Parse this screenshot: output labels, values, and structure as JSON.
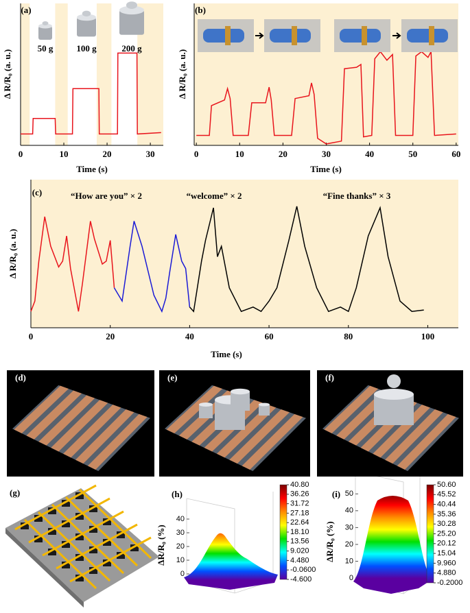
{
  "chart_data": [
    {
      "type": "line",
      "label": "(a)",
      "xlabel": "Time (s)",
      "ylabel": "Δ R/R₀ (a. u.)",
      "background": "#fdf0d2",
      "span_color": "#ffffff",
      "color": "#e8141c",
      "highlight_spans": [
        [
          2.1,
          8
        ],
        [
          10.9,
          17.6
        ],
        [
          21,
          27
        ]
      ],
      "annotations": [
        "50 g",
        "100 g",
        "200 g"
      ],
      "xlim": [
        0,
        33
      ],
      "ylim": [
        0,
        1
      ],
      "xticks": [
        0,
        10,
        20,
        30
      ],
      "x": [
        0,
        2.8,
        2.9,
        8.0,
        8.1,
        12.0,
        12.1,
        18.1,
        18.2,
        22.4,
        22.5,
        26.9,
        27.0,
        32.5
      ],
      "values": [
        0.08,
        0.08,
        0.19,
        0.19,
        0.08,
        0.08,
        0.4,
        0.4,
        0.08,
        0.08,
        0.65,
        0.65,
        0.08,
        0.09
      ]
    },
    {
      "type": "line",
      "label": "(b)",
      "xlabel": "Time (s)",
      "ylabel": "Δ R/R₀ (a. u.)",
      "background": "#fdf0d2",
      "color": "#e8141c",
      "xlim": [
        -0.5,
        60.5
      ],
      "ylim": [
        0,
        1
      ],
      "xticks": [
        0,
        10,
        20,
        30,
        40,
        50,
        60
      ],
      "x": [
        0,
        3,
        3.5,
        6.5,
        7.2,
        7.8,
        8.5,
        12,
        12.8,
        16,
        16.8,
        17.3,
        18,
        22,
        22.8,
        26,
        26.6,
        27.2,
        28,
        30,
        33.5,
        34.2,
        37,
        38,
        38.6,
        40.5,
        41.2,
        42.5,
        44,
        45.3,
        46,
        50,
        50.7,
        52,
        53.5,
        54.2,
        55,
        60
      ],
      "values": [
        0.07,
        0.07,
        0.28,
        0.32,
        0.4,
        0.33,
        0.07,
        0.07,
        0.3,
        0.3,
        0.41,
        0.32,
        0.07,
        0.07,
        0.33,
        0.35,
        0.44,
        0.36,
        0.05,
        0.01,
        0.03,
        0.54,
        0.55,
        0.57,
        0.06,
        0.07,
        0.61,
        0.66,
        0.6,
        0.64,
        0.07,
        0.07,
        0.63,
        0.66,
        0.62,
        0.66,
        0.07,
        0.08
      ]
    },
    {
      "type": "line",
      "label": "(c)",
      "xlabel": "Time (s)",
      "ylabel": "Δ R/R₀ (a. u.)",
      "background": "#fdf0d2",
      "annotations": [
        "“How are you” × 2",
        "“welcome” × 2",
        "“Fine thanks” × 3"
      ],
      "xlim": [
        0,
        107.7
      ],
      "ylim": [
        0,
        1
      ],
      "xticks": [
        0,
        20,
        40,
        60,
        80,
        100
      ],
      "series": [
        {
          "color": "#e8141c",
          "x": [
            0,
            1,
            2,
            3.5,
            5,
            7,
            8,
            9,
            10,
            12,
            13,
            15,
            16,
            18,
            19,
            20,
            21
          ],
          "values": [
            0.11,
            0.18,
            0.45,
            0.75,
            0.55,
            0.41,
            0.45,
            0.62,
            0.4,
            0.11,
            0.3,
            0.72,
            0.6,
            0.43,
            0.45,
            0.59,
            0.27
          ]
        },
        {
          "color": "#1a1ad6",
          "x": [
            21,
            23,
            25,
            26,
            28,
            31,
            33,
            34,
            35,
            36.5,
            38,
            39,
            40
          ],
          "values": [
            0.27,
            0.18,
            0.55,
            0.72,
            0.55,
            0.22,
            0.11,
            0.2,
            0.38,
            0.63,
            0.45,
            0.4,
            0.14
          ]
        },
        {
          "color": "#000000",
          "x": [
            40,
            41,
            43,
            44,
            46,
            47,
            48,
            50,
            53,
            56,
            58,
            60,
            62,
            65,
            67,
            69,
            72,
            75,
            78,
            80,
            82,
            85,
            88,
            90,
            93,
            96,
            99
          ],
          "values": [
            0.14,
            0.11,
            0.45,
            0.59,
            0.81,
            0.48,
            0.55,
            0.27,
            0.11,
            0.14,
            0.11,
            0.18,
            0.27,
            0.59,
            0.82,
            0.55,
            0.27,
            0.11,
            0.14,
            0.11,
            0.27,
            0.62,
            0.81,
            0.48,
            0.18,
            0.11,
            0.12
          ]
        }
      ]
    },
    {
      "type": "surface",
      "label": "(h)",
      "zlabel": "ΔR/R₀ (%)",
      "zlim": [
        -5,
        45
      ],
      "zticks": [
        0,
        10,
        20,
        30,
        40
      ],
      "colormap": [
        "#7a0000",
        "#ff0000",
        "#ff8c00",
        "#ffff00",
        "#00e000",
        "#00ffff",
        "#0050ff",
        "#5a00a0"
      ],
      "clim": [
        -4.6,
        40.8
      ],
      "cticks": [
        {
          "value": 40.8,
          "label": "40.80"
        },
        {
          "value": 36.26,
          "label": "36.26"
        },
        {
          "value": 31.72,
          "label": "31.72"
        },
        {
          "value": 27.18,
          "label": "27.18"
        },
        {
          "value": 22.64,
          "label": "22.64"
        },
        {
          "value": 18.1,
          "label": "18.10"
        },
        {
          "value": 13.56,
          "label": "13.56"
        },
        {
          "value": 9.02,
          "label": "9.020"
        },
        {
          "value": 4.48,
          "label": "4.480"
        },
        {
          "value": -0.06,
          "label": "-0.0600"
        },
        {
          "value": -4.6,
          "label": "-4.600"
        }
      ]
    },
    {
      "type": "surface",
      "label": "(i)",
      "zlabel": "ΔR/R₀ (%)",
      "zlim": [
        -2,
        55
      ],
      "zticks": [
        0,
        10,
        20,
        30,
        40,
        50
      ],
      "colormap": [
        "#7a0000",
        "#ff0000",
        "#ff8c00",
        "#ffff00",
        "#00e000",
        "#00ffff",
        "#0050ff",
        "#5a00a0"
      ],
      "clim": [
        -0.2,
        50.6
      ],
      "cticks": [
        {
          "value": 50.6,
          "label": "50.60"
        },
        {
          "value": 45.52,
          "label": "45.52"
        },
        {
          "value": 40.44,
          "label": "40.44"
        },
        {
          "value": 35.36,
          "label": "35.36"
        },
        {
          "value": 30.28,
          "label": "30.28"
        },
        {
          "value": 25.2,
          "label": "25.20"
        },
        {
          "value": 20.12,
          "label": "20.12"
        },
        {
          "value": 15.04,
          "label": "15.04"
        },
        {
          "value": 9.96,
          "label": "9.960"
        },
        {
          "value": 4.88,
          "label": "4.880"
        },
        {
          "value": -0.2,
          "label": "-0.2000"
        }
      ]
    }
  ],
  "photo_labels": [
    "(d)",
    "(e)",
    "(f)"
  ],
  "diagram_label": "(g)"
}
